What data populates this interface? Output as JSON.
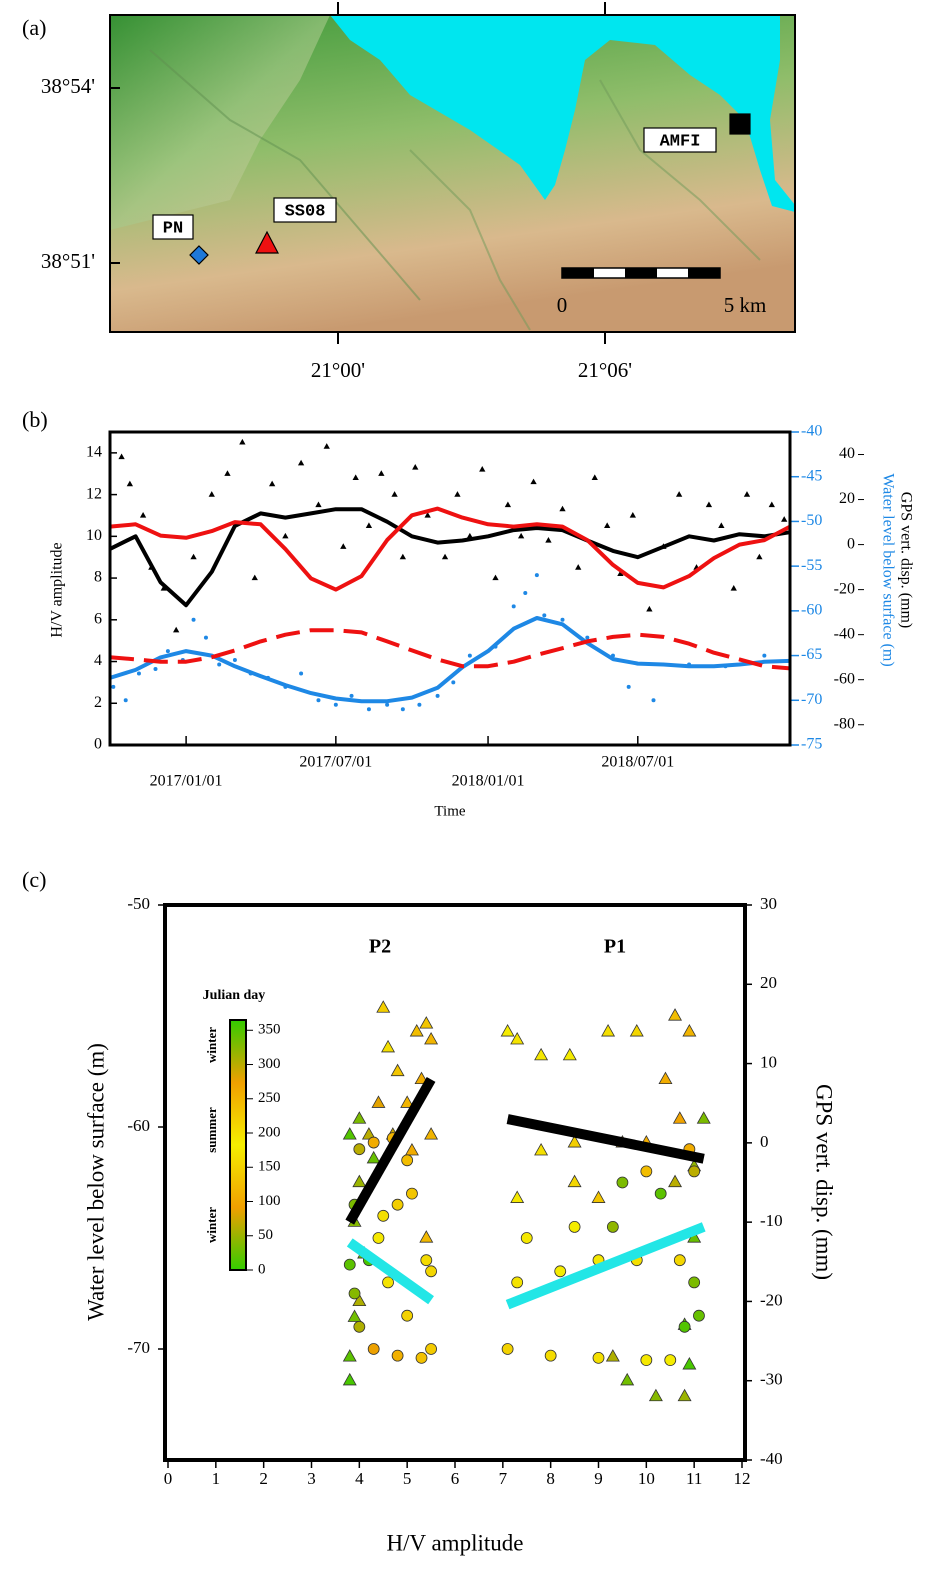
{
  "map": {
    "label": "(a)",
    "yticks": [
      "38°54'",
      "38°51'"
    ],
    "xticks": [
      "21°00'",
      "21°06'"
    ],
    "stations": [
      {
        "name": "PN",
        "color": "#1e78d8",
        "marker": "diamond"
      },
      {
        "name": "SS08",
        "color": "#ee1111",
        "marker": "triangle"
      },
      {
        "name": "AMFI",
        "color": "#000000",
        "marker": "square"
      }
    ],
    "scale_bar": [
      "0",
      "5 km"
    ]
  },
  "chart_data": [
    {
      "type": "timeseries",
      "label": "(b)",
      "xlabel": "Time",
      "ylabel": "H/V amplitude",
      "y2label": "Water level below surface (m)",
      "y3label": "GPS vert. disp. (mm)",
      "y2color": "#1e88e5",
      "xlim": [
        "2016/10/01",
        "2019/01/01"
      ],
      "xticks": [
        "2017/01/01",
        "2017/07/01",
        "2018/01/01",
        "2018/07/01"
      ],
      "ylim": [
        0,
        15
      ],
      "yticks": [
        0,
        2,
        4,
        6,
        8,
        10,
        12,
        14
      ],
      "y2lim": [
        -75,
        -40
      ],
      "y2ticks": [
        -75,
        -70,
        -65,
        -60,
        -55,
        -50,
        -45,
        -40
      ],
      "y3lim": [
        -89,
        50
      ],
      "y3ticks": [
        -80,
        -60,
        -40,
        -20,
        0,
        20,
        40
      ],
      "series": [
        {
          "mode": "markers",
          "marker": "triangle",
          "color": "#000000",
          "axis": "y",
          "x": [
            "2016/10/15",
            "2016/10/25",
            "2016/11/10",
            "2016/11/20",
            "2016/12/05",
            "2016/12/20",
            "2017/01/10",
            "2017/02/01",
            "2017/02/20",
            "2017/03/10",
            "2017/03/25",
            "2017/04/15",
            "2017/05/01",
            "2017/05/20",
            "2017/06/10",
            "2017/06/20",
            "2017/07/10",
            "2017/07/25",
            "2017/08/10",
            "2017/08/25",
            "2017/09/10",
            "2017/09/20",
            "2017/10/05",
            "2017/10/20",
            "2017/11/10",
            "2017/11/25",
            "2017/12/10",
            "2017/12/25",
            "2018/01/10",
            "2018/01/25",
            "2018/02/10",
            "2018/02/25",
            "2018/03/15",
            "2018/04/01",
            "2018/04/20",
            "2018/05/10",
            "2018/05/25",
            "2018/06/10",
            "2018/06/25",
            "2018/07/15",
            "2018/08/01",
            "2018/08/20",
            "2018/09/10",
            "2018/09/25",
            "2018/10/10",
            "2018/10/25",
            "2018/11/10",
            "2018/11/25",
            "2018/12/10",
            "2018/12/25"
          ],
          "values": [
            13.8,
            12.5,
            11.0,
            8.5,
            7.5,
            5.5,
            9.0,
            12.0,
            13.0,
            14.5,
            8.0,
            12.5,
            10.0,
            13.5,
            11.5,
            14.3,
            9.5,
            12.8,
            10.5,
            13.0,
            12.0,
            9.0,
            13.3,
            11.0,
            9.0,
            12.0,
            10.0,
            13.2,
            8.0,
            11.5,
            10.0,
            12.6,
            9.8,
            11.3,
            8.5,
            12.8,
            10.5,
            8.2,
            11.0,
            6.5,
            9.5,
            12.0,
            8.5,
            11.5,
            10.5,
            7.5,
            12.0,
            9.0,
            11.5,
            10.8
          ]
        },
        {
          "mode": "markers",
          "marker": "dot",
          "color": "#1e88e5",
          "axis": "y2",
          "x": [
            "2016/10/05",
            "2016/10/20",
            "2016/11/05",
            "2016/11/25",
            "2016/12/10",
            "2016/12/28",
            "2017/01/10",
            "2017/01/25",
            "2017/02/10",
            "2017/03/01",
            "2017/03/20",
            "2017/04/10",
            "2017/05/01",
            "2017/05/20",
            "2017/06/10",
            "2017/07/01",
            "2017/07/20",
            "2017/08/10",
            "2017/09/01",
            "2017/09/20",
            "2017/10/10",
            "2017/11/01",
            "2017/11/20",
            "2017/12/10",
            "2018/01/10",
            "2018/02/01",
            "2018/02/15",
            "2018/03/01",
            "2018/03/10",
            "2018/04/01",
            "2018/05/01",
            "2018/06/01",
            "2018/06/20",
            "2018/07/20",
            "2018/09/01",
            "2018/10/15",
            "2018/12/01"
          ],
          "values": [
            -68.5,
            -70,
            -67,
            -66.5,
            -64.5,
            -65.5,
            -61,
            -63,
            -66,
            -65.5,
            -67,
            -67.5,
            -68.5,
            -67,
            -70,
            -70.5,
            -69.5,
            -71,
            -70.5,
            -71,
            -70.5,
            -69.5,
            -68,
            -65,
            -64,
            -59.5,
            -58,
            -56,
            -60.5,
            -61,
            -63,
            -65,
            -68.5,
            -70,
            -66,
            -66.2,
            -65
          ]
        },
        {
          "mode": "lines",
          "color": "#1e88e5",
          "axis": "y2",
          "x": [
            "2016/10/01",
            "2016/11/01",
            "2016/12/01",
            "2017/01/01",
            "2017/02/01",
            "2017/03/01",
            "2017/04/01",
            "2017/05/01",
            "2017/06/01",
            "2017/07/01",
            "2017/08/01",
            "2017/09/01",
            "2017/10/01",
            "2017/11/01",
            "2017/12/01",
            "2018/01/01",
            "2018/02/01",
            "2018/03/01",
            "2018/04/01",
            "2018/05/01",
            "2018/06/01",
            "2018/07/01",
            "2018/08/01",
            "2018/09/01",
            "2018/10/01",
            "2018/11/01",
            "2018/12/01",
            "2019/01/01"
          ],
          "values": [
            -67.5,
            -66.6,
            -65.2,
            -64.5,
            -65.0,
            -66.2,
            -67.3,
            -68.3,
            -69.2,
            -69.8,
            -70.1,
            -70.1,
            -69.7,
            -68.6,
            -66.3,
            -64.5,
            -62.0,
            -60.8,
            -61.5,
            -63.6,
            -65.4,
            -65.9,
            -66.0,
            -66.2,
            -66.2,
            -66.0,
            -65.7,
            -65.6
          ]
        },
        {
          "mode": "lines",
          "color": "#000000",
          "axis": "y",
          "x": [
            "2016/10/01",
            "2016/11/01",
            "2016/12/01",
            "2017/01/01",
            "2017/02/01",
            "2017/03/01",
            "2017/04/01",
            "2017/05/01",
            "2017/06/01",
            "2017/07/01",
            "2017/08/01",
            "2017/09/01",
            "2017/10/01",
            "2017/11/01",
            "2017/12/01",
            "2018/01/01",
            "2018/02/01",
            "2018/03/01",
            "2018/04/01",
            "2018/05/01",
            "2018/06/01",
            "2018/07/01",
            "2018/08/01",
            "2018/09/01",
            "2018/10/01",
            "2018/11/01",
            "2018/12/01",
            "2019/01/01"
          ],
          "values": [
            9.4,
            10.0,
            7.8,
            6.7,
            8.3,
            10.5,
            11.1,
            10.9,
            11.1,
            11.3,
            11.3,
            10.7,
            10.0,
            9.7,
            9.8,
            10.0,
            10.3,
            10.4,
            10.3,
            9.8,
            9.3,
            9.0,
            9.5,
            10.0,
            9.8,
            10.1,
            10.0,
            10.2
          ]
        },
        {
          "mode": "lines",
          "color": "#ee1111",
          "axis": "y3",
          "x": [
            "2016/10/01",
            "2016/11/01",
            "2016/12/01",
            "2017/01/01",
            "2017/02/01",
            "2017/03/01",
            "2017/04/01",
            "2017/05/01",
            "2017/06/01",
            "2017/07/01",
            "2017/08/01",
            "2017/09/01",
            "2017/10/01",
            "2017/11/01",
            "2017/12/01",
            "2018/01/01",
            "2018/02/01",
            "2018/03/01",
            "2018/04/01",
            "2018/05/01",
            "2018/06/01",
            "2018/07/01",
            "2018/08/01",
            "2018/09/01",
            "2018/10/01",
            "2018/11/01",
            "2018/12/01",
            "2019/01/01"
          ],
          "values": [
            8,
            9,
            4,
            3,
            6,
            10,
            9,
            -2,
            -15,
            -20,
            -14,
            2,
            13,
            16,
            12,
            9,
            8,
            9,
            8,
            2,
            -9,
            -17,
            -19,
            -14,
            -6,
            0,
            2,
            8
          ]
        },
        {
          "mode": "lines",
          "dash": true,
          "color": "#ee1111",
          "axis": "y3",
          "x": [
            "2016/10/01",
            "2016/11/01",
            "2016/12/01",
            "2017/01/01",
            "2017/02/01",
            "2017/03/01",
            "2017/04/01",
            "2017/05/01",
            "2017/06/01",
            "2017/07/01",
            "2017/08/01",
            "2017/09/01",
            "2017/10/01",
            "2017/11/01",
            "2017/12/01",
            "2018/01/01",
            "2018/02/01",
            "2018/03/01",
            "2018/04/01",
            "2018/05/01",
            "2018/06/01",
            "2018/07/01",
            "2018/08/01",
            "2018/09/01",
            "2018/10/01",
            "2018/11/01",
            "2018/12/01",
            "2019/01/01"
          ],
          "values": [
            -50,
            -51,
            -52,
            -52,
            -50,
            -47,
            -43,
            -40,
            -38,
            -38,
            -39,
            -43,
            -47,
            -51,
            -54,
            -54,
            -52,
            -49,
            -46,
            -43,
            -41,
            -40,
            -41,
            -44,
            -48,
            -51,
            -54,
            -55
          ]
        }
      ]
    },
    {
      "type": "scatter",
      "label": "(c)",
      "xlabel": "H/V amplitude",
      "ylabel": "Water level below surface (m)",
      "y2label": "GPS vert. disp. (mm)",
      "annotations": [
        "P2",
        "P1"
      ],
      "xlim": [
        0,
        12
      ],
      "xticks": [
        0,
        1,
        2,
        3,
        4,
        5,
        6,
        7,
        8,
        9,
        10,
        11,
        12
      ],
      "ylim": [
        -75,
        -50
      ],
      "yticks": [
        -70,
        -60,
        -50
      ],
      "y2lim": [
        -40,
        30
      ],
      "y2ticks": [
        -40,
        -30,
        -20,
        -10,
        0,
        10,
        20,
        30
      ],
      "colorbar": {
        "label": "Julian day",
        "lim": [
          0,
          365
        ],
        "ticks": [
          0,
          50,
          100,
          150,
          200,
          250,
          300,
          350
        ],
        "colors": [
          "#33cc00",
          "#f0a000",
          "#f5ee00",
          "#f0a000",
          "#33cc00"
        ],
        "seasons": [
          "winter",
          "summer",
          "winter"
        ]
      },
      "series": [
        {
          "marker": "triangle",
          "axis": "y2",
          "x": [
            3.8,
            3.8,
            3.9,
            3.9,
            3.8,
            4.0,
            4.2,
            4.3,
            4.5,
            4.6,
            4.8,
            5.0,
            5.2,
            5.4,
            5.5,
            5.3,
            4.4,
            4.7,
            5.1,
            5.5,
            4.0,
            4.1,
            4.0,
            5.4,
            7.1,
            7.3,
            7.8,
            8.4,
            9.2,
            9.8,
            10.6,
            10.9,
            11.2,
            11.0,
            10.6,
            10.0,
            9.5,
            8.5,
            7.8,
            7.3,
            8.5,
            9.0,
            10.8,
            10.9,
            9.6,
            10.2,
            10.8,
            9.3,
            11.0,
            10.7,
            10.4
          ],
          "values": [
            -30,
            -27,
            -22,
            -10,
            1,
            3,
            1,
            -2,
            17,
            12,
            9,
            5,
            14,
            15,
            13,
            8,
            5,
            1,
            -1,
            1,
            -5,
            -14,
            -20,
            -12,
            14,
            13,
            11,
            11,
            14,
            14,
            16,
            14,
            3,
            -3,
            -5,
            0,
            0,
            0,
            -1,
            -7,
            -5,
            -7,
            -23,
            -28,
            -30,
            -32,
            -32,
            -27,
            -12,
            3,
            8
          ],
          "days": [
            10,
            20,
            30,
            40,
            350,
            330,
            300,
            340,
            220,
            200,
            230,
            250,
            240,
            230,
            250,
            260,
            280,
            290,
            260,
            250,
            50,
            30,
            60,
            120,
            180,
            170,
            190,
            180,
            200,
            210,
            240,
            250,
            330,
            320,
            300,
            260,
            250,
            220,
            200,
            190,
            210,
            230,
            20,
            10,
            30,
            40,
            50,
            60,
            340,
            270,
            260
          ]
        },
        {
          "marker": "circle",
          "axis": "y",
          "x": [
            3.8,
            3.9,
            4.0,
            4.3,
            4.8,
            5.3,
            5.5,
            5.0,
            4.6,
            4.4,
            4.5,
            4.8,
            5.1,
            5.4,
            5.5,
            5.0,
            4.7,
            4.3,
            4.0,
            3.9,
            4.2,
            7.1,
            8.0,
            9.0,
            10.0,
            10.5,
            7.3,
            8.2,
            9.0,
            9.8,
            10.7,
            7.5,
            8.5,
            10.0,
            10.9,
            9.5,
            9.3,
            10.3,
            11.0,
            11.1,
            10.8,
            11.0
          ],
          "values": [
            -66.2,
            -67.5,
            -69,
            -70,
            -70.3,
            -70.4,
            -70,
            -68.5,
            -67,
            -65,
            -64,
            -63.5,
            -63,
            -66,
            -66.5,
            -61.5,
            -60.5,
            -60.7,
            -61,
            -63.5,
            -66,
            -70,
            -70.3,
            -70.4,
            -70.5,
            -70.5,
            -67,
            -66.5,
            -66,
            -66,
            -66,
            -65,
            -64.5,
            -62,
            -61,
            -62.5,
            -64.5,
            -63,
            -67,
            -68.5,
            -69,
            -62
          ],
          "days": [
            20,
            40,
            60,
            90,
            110,
            130,
            140,
            150,
            170,
            190,
            200,
            220,
            230,
            160,
            155,
            240,
            250,
            260,
            300,
            330,
            10,
            150,
            160,
            165,
            175,
            180,
            170,
            180,
            190,
            200,
            210,
            175,
            180,
            240,
            260,
            330,
            320,
            345,
            330,
            340,
            350,
            300
          ]
        },
        {
          "mode": "fit",
          "color": "#000000",
          "axis": "y2",
          "x": [
            3.8,
            5.5
          ],
          "values": [
            -10,
            8
          ]
        },
        {
          "mode": "fit",
          "color": "#000000",
          "axis": "y2",
          "x": [
            7.1,
            11.2
          ],
          "values": [
            3,
            -2
          ]
        },
        {
          "mode": "fit",
          "color": "#22e6e6",
          "axis": "y",
          "x": [
            3.8,
            5.5
          ],
          "values": [
            -65.2,
            -67.8
          ]
        },
        {
          "mode": "fit",
          "color": "#22e6e6",
          "axis": "y",
          "x": [
            7.1,
            11.2
          ],
          "values": [
            -68,
            -64.5
          ]
        }
      ]
    }
  ]
}
